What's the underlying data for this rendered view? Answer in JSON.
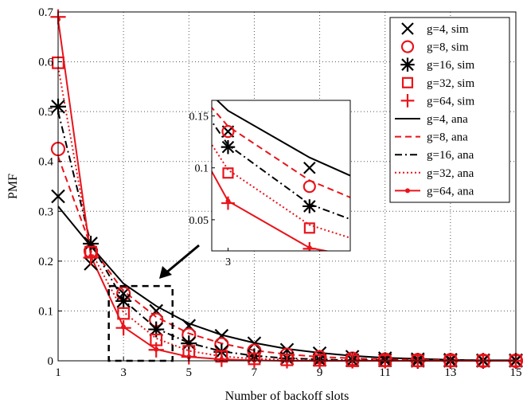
{
  "chart_data": {
    "type": "line",
    "title": "",
    "xlabel": "Number of backoff slots",
    "ylabel": "PMF",
    "xlim": [
      1,
      15
    ],
    "ylim": [
      0,
      0.7
    ],
    "xticks": [
      "1",
      "3",
      "5",
      "7",
      "9",
      "11",
      "13",
      "15"
    ],
    "yticks": [
      "0",
      "0.1",
      "0.2",
      "0.3",
      "0.4",
      "0.5",
      "0.6",
      "0.7"
    ],
    "grid": true,
    "legend_position": "top-right",
    "x": [
      1,
      2,
      3,
      4,
      5,
      6,
      7,
      8,
      9,
      10,
      11,
      12,
      13,
      14,
      15
    ],
    "series": [
      {
        "name": "g=4, sim",
        "kind": "sim",
        "marker": "x",
        "color": "#000000",
        "values": [
          0.33,
          0.195,
          0.135,
          0.1,
          0.07,
          0.05,
          0.035,
          0.022,
          0.015,
          0.008,
          0.005,
          0.003,
          0.002,
          0.001,
          0.001
        ]
      },
      {
        "name": "g=8, sim",
        "kind": "sim",
        "marker": "o",
        "color": "#e8141b",
        "values": [
          0.425,
          0.22,
          0.135,
          0.082,
          0.052,
          0.033,
          0.02,
          0.012,
          0.007,
          0.004,
          0.002,
          0.001,
          0.001,
          0.0,
          0.0
        ]
      },
      {
        "name": "g=16, sim",
        "kind": "sim",
        "marker": "star",
        "color": "#000000",
        "values": [
          0.51,
          0.235,
          0.12,
          0.063,
          0.035,
          0.018,
          0.009,
          0.005,
          0.002,
          0.001,
          0.001,
          0.0,
          0.0,
          0.0,
          0.0
        ]
      },
      {
        "name": "g=32, sim",
        "kind": "sim",
        "marker": "square",
        "color": "#e8141b",
        "values": [
          0.598,
          0.218,
          0.095,
          0.042,
          0.019,
          0.009,
          0.004,
          0.002,
          0.001,
          0.0,
          0.0,
          0.0,
          0.0,
          0.0,
          0.0
        ]
      },
      {
        "name": "g=64, sim",
        "kind": "sim",
        "marker": "plus",
        "color": "#e8141b",
        "values": [
          0.69,
          0.207,
          0.066,
          0.022,
          0.008,
          0.003,
          0.001,
          0.0,
          0.0,
          0.0,
          0.0,
          0.0,
          0.0,
          0.0,
          0.0
        ]
      },
      {
        "name": "g=4, ana",
        "kind": "ana",
        "dash": "solid",
        "color": "#000000",
        "values": [
          0.31,
          0.23,
          0.155,
          0.11,
          0.075,
          0.052,
          0.036,
          0.024,
          0.016,
          0.01,
          0.006,
          0.004,
          0.002,
          0.001,
          0.001
        ]
      },
      {
        "name": "g=8, ana",
        "kind": "ana",
        "dash": "dashed",
        "color": "#e8141b",
        "values": [
          0.41,
          0.23,
          0.14,
          0.088,
          0.055,
          0.035,
          0.021,
          0.013,
          0.008,
          0.005,
          0.003,
          0.002,
          0.001,
          0.0,
          0.0
        ]
      },
      {
        "name": "g=16, ana",
        "kind": "ana",
        "dash": "dashdot",
        "color": "#000000",
        "values": [
          0.5,
          0.235,
          0.122,
          0.065,
          0.036,
          0.019,
          0.01,
          0.005,
          0.003,
          0.001,
          0.001,
          0.0,
          0.0,
          0.0,
          0.0
        ]
      },
      {
        "name": "g=32, ana",
        "kind": "ana",
        "dash": "dotted",
        "color": "#e8141b",
        "values": [
          0.59,
          0.22,
          0.098,
          0.045,
          0.02,
          0.009,
          0.004,
          0.002,
          0.001,
          0.0,
          0.0,
          0.0,
          0.0,
          0.0,
          0.0
        ]
      },
      {
        "name": "g=64, ana",
        "kind": "ana",
        "dash": "solid-dot",
        "color": "#e8141b",
        "values": [
          0.685,
          0.21,
          0.068,
          0.023,
          0.008,
          0.003,
          0.001,
          0.0,
          0.0,
          0.0,
          0.0,
          0.0,
          0.0,
          0.0,
          0.0
        ]
      }
    ],
    "inset": {
      "xlim": [
        2.8,
        4.5
      ],
      "ylim": [
        0.02,
        0.165
      ],
      "xticks": [
        "3"
      ],
      "yticks": [
        "0.05",
        "0.1",
        "0.15"
      ],
      "zoom_box": {
        "x": [
          2.55,
          4.5
        ],
        "y": [
          0,
          0.15
        ]
      }
    }
  }
}
